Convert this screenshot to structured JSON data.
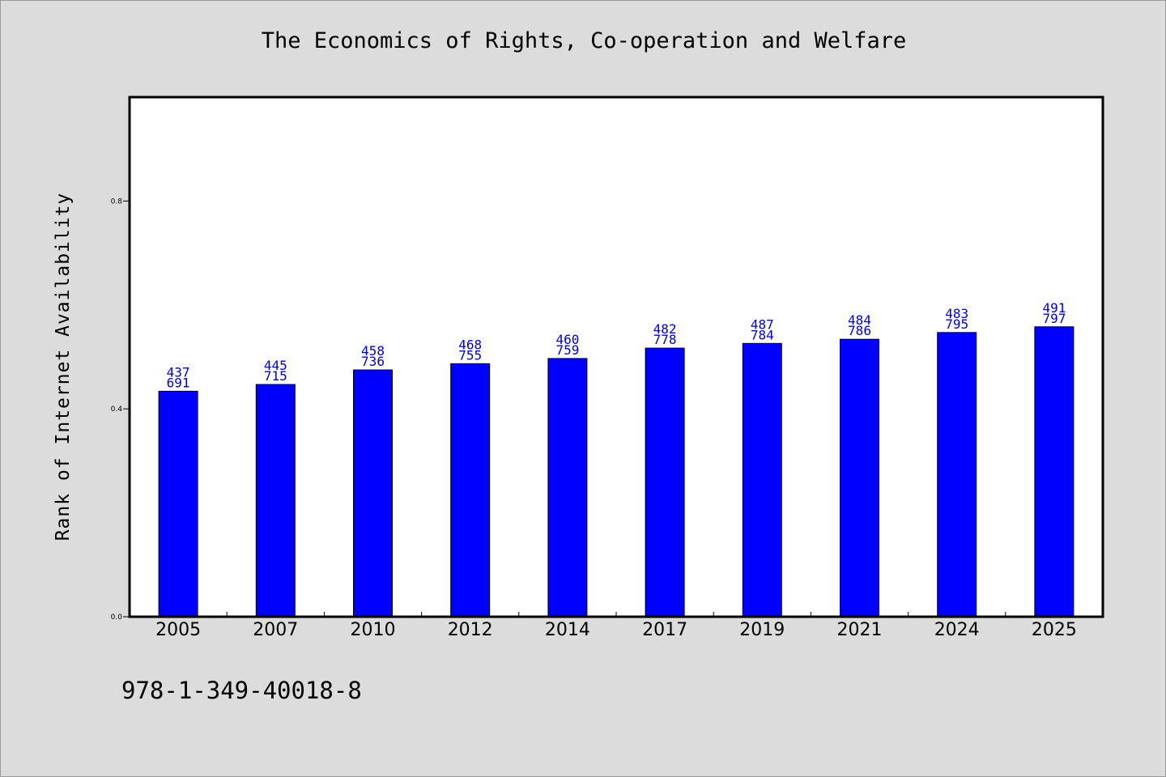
{
  "title": "The Economics of Rights, Co-operation and Welfare",
  "footer_code": "978-1-349-40018-8",
  "colors": {
    "bar": "#0000ff",
    "label": "#0000cc",
    "background": "#dcdcdc",
    "plot_background": "#ffffff"
  },
  "chart_data": {
    "type": "bar",
    "title": "The Economics of Rights, Co-operation and Welfare",
    "xlabel": "",
    "ylabel": "Rank of Internet Availability",
    "ylim": [
      0,
      1.0
    ],
    "yticks": [
      0.0,
      0.4,
      0.8
    ],
    "ytick_labels": [
      "0.0",
      "0.4",
      "0.8"
    ],
    "grid": false,
    "categories": [
      "2005",
      "2007",
      "2010",
      "2012",
      "2014",
      "2017",
      "2019",
      "2021",
      "2024",
      "2025"
    ],
    "values": [
      0.434,
      0.447,
      0.475,
      0.487,
      0.497,
      0.517,
      0.526,
      0.534,
      0.547,
      0.558
    ],
    "bar_labels_top": [
      "437",
      "445",
      "458",
      "468",
      "460",
      "482",
      "487",
      "484",
      "483",
      "491"
    ],
    "bar_labels_bottom": [
      "691",
      "715",
      "736",
      "755",
      "759",
      "778",
      "784",
      "786",
      "795",
      "797"
    ]
  }
}
